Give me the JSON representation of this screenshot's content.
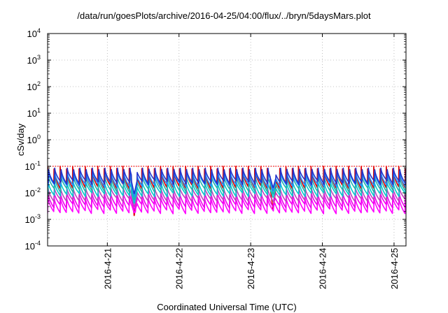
{
  "chart_data": {
    "type": "line",
    "title": "/data/run/goesPlots/archive/2016-04-25/04:00/flux/../bryn/5daysMars.plot",
    "xlabel": "Coordinated Universal Time (UTC)",
    "ylabel": "cSv/day",
    "yscale": "log",
    "ylim": [
      0.0001,
      10000
    ],
    "y_ticks": [
      {
        "base": "10",
        "exp": "-4",
        "value": 0.0001
      },
      {
        "base": "10",
        "exp": "-3",
        "value": 0.001
      },
      {
        "base": "10",
        "exp": "-2",
        "value": 0.01
      },
      {
        "base": "10",
        "exp": "-1",
        "value": 0.1
      },
      {
        "base": "10",
        "exp": "0",
        "value": 1
      },
      {
        "base": "10",
        "exp": "1",
        "value": 10
      },
      {
        "base": "10",
        "exp": "2",
        "value": 100
      },
      {
        "base": "10",
        "exp": "3",
        "value": 1000
      },
      {
        "base": "10",
        "exp": "4",
        "value": 10000
      }
    ],
    "xlim": [
      "2016-04-20 04:00",
      "2016-04-25 04:00"
    ],
    "x_ticks": [
      "2016-4-21",
      "2016-4-22",
      "2016-4-23",
      "2016-4-24",
      "2016-4-25"
    ],
    "grid": true,
    "threshold": 0.1,
    "sawtooth_period_hours": 2.1,
    "series": [
      {
        "color": "#dd0000",
        "peak": 0.1,
        "trough": 0.014
      },
      {
        "color": "#ff00ff",
        "peak": 0.008,
        "trough": 0.0016
      },
      {
        "color": "#ee00ee",
        "peak": 0.012,
        "trough": 0.0026
      },
      {
        "color": "#c040c0",
        "peak": 0.018,
        "trough": 0.0045
      },
      {
        "color": "#00cccc",
        "peak": 0.03,
        "trough": 0.007
      },
      {
        "color": "#20b2aa",
        "peak": 0.05,
        "trough": 0.01
      },
      {
        "color": "#1e90ff",
        "peak": 0.07,
        "trough": 0.016
      },
      {
        "color": "#2233cc",
        "peak": 0.09,
        "trough": 0.02
      }
    ],
    "events": [
      {
        "time": "2016-04-21 09:00",
        "dip_to": 0.0013
      },
      {
        "time": "2016-04-23 07:30",
        "dip_to": 0.0022
      }
    ]
  }
}
